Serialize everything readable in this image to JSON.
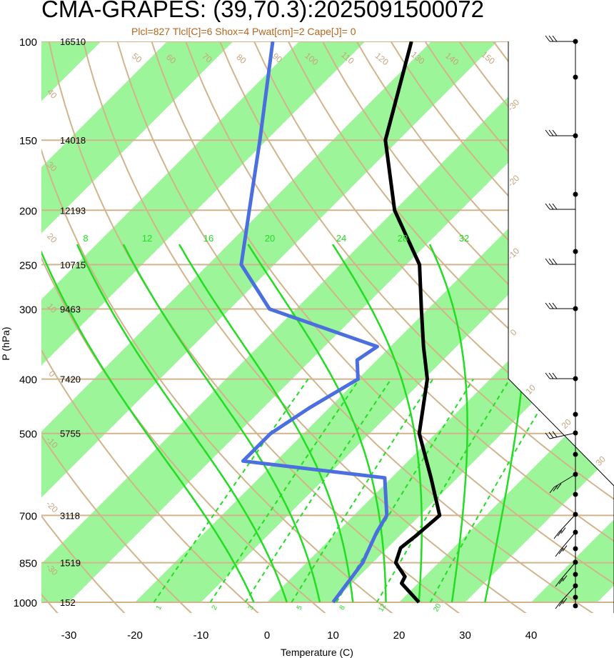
{
  "chart_data": {
    "type": "line",
    "title": "CMA-GRAPES: (39,70.3):2025091500072",
    "subtitle": "Plcl=827 Tlcl[C]=6 Shox=4 Pwat[cm]=2 Cape[J]= 0",
    "xlabel": "Temperature (C)",
    "ylabel": "P (hPa)",
    "xlim": [
      -33,
      52
    ],
    "ylim": [
      1000,
      100
    ],
    "pressure_ticks": [
      100,
      150,
      200,
      250,
      300,
      400,
      500,
      700,
      850,
      1000
    ],
    "pressure_tick_labels": [
      "100",
      "150",
      "200",
      "250",
      "300",
      "400",
      "500",
      "700",
      "850",
      "1000"
    ],
    "temperature_ticks": [
      -30,
      -20,
      -10,
      0,
      10,
      20,
      30,
      40
    ],
    "temperature_tick_labels": [
      "-30",
      "-20",
      "-10",
      "0",
      "10",
      "20",
      "30",
      "40"
    ],
    "heights": [
      {
        "p": 100,
        "label": "16510"
      },
      {
        "p": 150,
        "label": "14018"
      },
      {
        "p": 200,
        "label": "12193"
      },
      {
        "p": 250,
        "label": "10715"
      },
      {
        "p": 300,
        "label": "9463"
      },
      {
        "p": 400,
        "label": "7420"
      },
      {
        "p": 500,
        "label": "5755"
      },
      {
        "p": 700,
        "label": "3118"
      },
      {
        "p": 850,
        "label": "1519"
      },
      {
        "p": 1000,
        "label": "152"
      }
    ],
    "series": [
      {
        "role": "temperature",
        "color": "#000000",
        "points": [
          [
            1000,
            23
          ],
          [
            925,
            17.5
          ],
          [
            900,
            17
          ],
          [
            850,
            13.5
          ],
          [
            800,
            12
          ],
          [
            760,
            12.5
          ],
          [
            700,
            13
          ],
          [
            600,
            6
          ],
          [
            500,
            -2.5
          ],
          [
            400,
            -9.5
          ],
          [
            350,
            -15
          ],
          [
            300,
            -21
          ],
          [
            250,
            -28
          ],
          [
            200,
            -40
          ],
          [
            150,
            -52
          ],
          [
            100,
            -63
          ]
        ]
      },
      {
        "role": "dewpoint",
        "color": "#4c6fdf",
        "points": [
          [
            1000,
            10
          ],
          [
            850,
            8.5
          ],
          [
            750,
            6
          ],
          [
            700,
            5
          ],
          [
            600,
            -1
          ],
          [
            560,
            -25
          ],
          [
            500,
            -25
          ],
          [
            450,
            -23
          ],
          [
            400,
            -20
          ],
          [
            370,
            -23
          ],
          [
            350,
            -22
          ],
          [
            300,
            -44
          ],
          [
            250,
            -55
          ],
          [
            200,
            -62
          ],
          [
            150,
            -71
          ],
          [
            100,
            -84
          ]
        ]
      }
    ],
    "dry_adiabat_labels": [
      "50",
      "60",
      "70",
      "80",
      "90",
      "100",
      "110",
      "120",
      "130",
      "140",
      "150",
      "160"
    ],
    "moist_adiabat_labels": [
      "8",
      "12",
      "16",
      "20",
      "24",
      "28",
      "32"
    ],
    "mixing_ratio_labels": [
      "1",
      "2",
      "3",
      "5",
      "8",
      "12",
      "20"
    ],
    "isotherm_right_labels": [
      "-30",
      "-20",
      "-10",
      "0",
      "10",
      "20",
      "30"
    ],
    "left_diagonal_labels": [
      "40",
      "30",
      "20",
      "10",
      "0",
      "-10",
      "-20",
      "-30"
    ],
    "wind_profile": "right-side wind barbs at listed pressure levels",
    "colors": {
      "isotherm_band": "#9cf598",
      "background_lines": "#d2b48c",
      "moist_adiabats": "#22dd22",
      "temperature": "#000000",
      "dewpoint": "#4c6fdf",
      "subtitle": "#b5651d"
    }
  }
}
